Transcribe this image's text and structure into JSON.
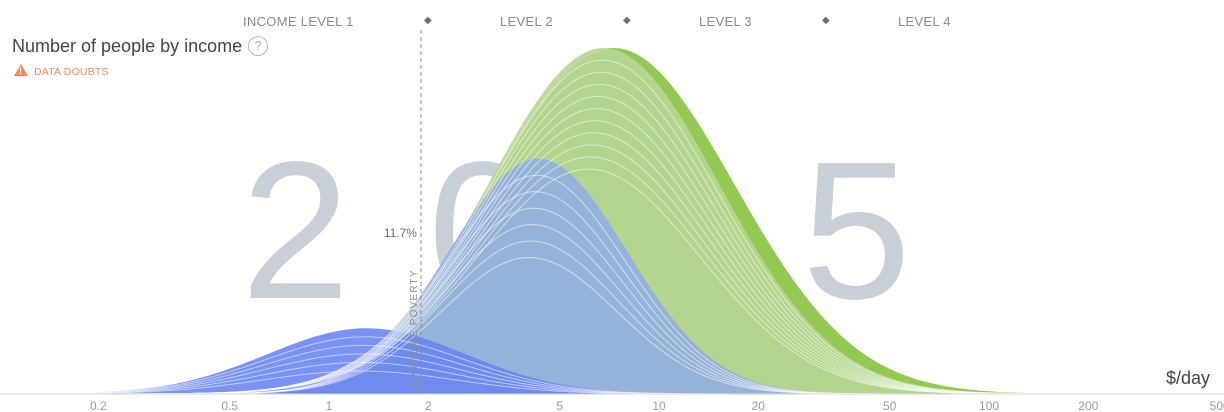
{
  "header": {
    "income_levels": [
      "INCOME LEVEL 1",
      "LEVEL 2",
      "LEVEL 3",
      "LEVEL 4"
    ]
  },
  "title": "Number of people by income",
  "help_symbol": "?",
  "data_doubts": "DATA DOUBTS",
  "year": "2015",
  "unit_label": "$/day",
  "poverty_line": {
    "value": 1.9,
    "label": "EXTREME POVERTY",
    "percent_label": "11.7%"
  },
  "colors": {
    "blue_light": "#93aee0",
    "blue_dark": "#6a86f2",
    "green": "#b8d693",
    "green_dark": "#86c340",
    "year_text": "#c9cfd6",
    "axis_text": "#9a9a9a",
    "warning": "#f08a5d"
  },
  "icons": {
    "help": "question-circle-icon",
    "warning": "warning-triangle-icon",
    "level_divider": "diamond-icon"
  },
  "chart_data": {
    "type": "area",
    "x_scale": "log",
    "x_ticks": [
      0.2,
      0.5,
      1,
      2,
      5,
      10,
      20,
      50,
      100,
      200,
      500
    ],
    "x_tick_labels": [
      "0.2",
      "0.5",
      "1",
      "2",
      "5",
      "10",
      "20",
      "50",
      "100",
      "200",
      "500"
    ],
    "xlim": [
      0.13,
      500
    ],
    "level_boundaries": [
      2,
      8,
      32
    ],
    "grid": false,
    "legend": "none",
    "series": [
      {
        "color": "#6a86f2",
        "peak_income": 1.3,
        "peak_share": 0.19,
        "spread": 0.3
      },
      {
        "color": "#93aee0",
        "peak_income": 4.3,
        "peak_share": 0.68,
        "spread": 0.27
      },
      {
        "color": "#b8d693",
        "peak_income": 6.8,
        "peak_share": 1.0,
        "spread": 0.35
      },
      {
        "color": "#86c340",
        "peak_income": 7.3,
        "peak_share": 1.0,
        "spread": 0.365
      }
    ]
  }
}
